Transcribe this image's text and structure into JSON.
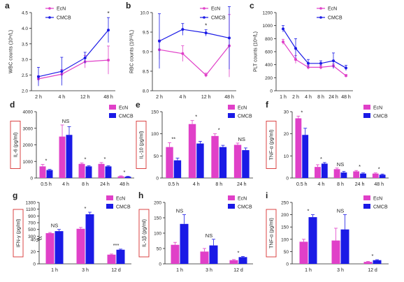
{
  "colors": {
    "ecn": "#e040c8",
    "cmcb": "#1a1ae6",
    "box": "#d83030",
    "axis": "#222222"
  },
  "chart_data": [
    {
      "id": "a",
      "panel_label": "a",
      "type": "line",
      "ylabel": "WBC counts (10⁹/L)",
      "categories": [
        "2 h",
        "4 h",
        "12 h",
        "48 h"
      ],
      "ylim": [
        2.0,
        4.5
      ],
      "yticks": [
        2.0,
        2.5,
        3.0,
        3.5,
        4.0,
        4.5
      ],
      "ytick_labels": [
        "2.0",
        "2.5",
        "3.0",
        "3.5",
        "4.0",
        "4.5"
      ],
      "legend": [
        "EcN",
        "CMCB"
      ],
      "legend_pos": "top-left",
      "series": [
        {
          "name": "EcN",
          "values": [
            2.38,
            2.53,
            2.93,
            2.98
          ],
          "err": [
            0.1,
            0.15,
            0.2,
            0.45
          ]
        },
        {
          "name": "CMCB",
          "values": [
            2.45,
            2.62,
            3.05,
            3.94
          ],
          "err": [
            0.3,
            0.45,
            0.18,
            0.4
          ]
        }
      ],
      "annotations": [
        {
          "index": 3,
          "text": "*"
        }
      ]
    },
    {
      "id": "b",
      "panel_label": "b",
      "type": "line",
      "ylabel": "RBC counts (10¹²/L)",
      "categories": [
        "2 h",
        "4 h",
        "12 h",
        "48 h"
      ],
      "ylim": [
        8.0,
        10.0
      ],
      "yticks": [
        8.0,
        8.5,
        9.0,
        9.5,
        10.0
      ],
      "ytick_labels": [
        "8.0",
        "8.5",
        "9.0",
        "9.5",
        "10.0"
      ],
      "legend": [
        "EcN",
        "CMCB"
      ],
      "legend_pos": "top-right",
      "series": [
        {
          "name": "EcN",
          "values": [
            9.05,
            8.95,
            8.4,
            9.15
          ],
          "err": [
            0.25,
            0.2,
            0.05,
            0.8
          ]
        },
        {
          "name": "CMCB",
          "values": [
            9.27,
            9.57,
            9.48,
            9.35
          ],
          "err": [
            0.7,
            0.15,
            0.08,
            0.8
          ]
        }
      ],
      "annotations": [
        {
          "index": 2,
          "text": "*"
        }
      ]
    },
    {
      "id": "c",
      "panel_label": "c",
      "type": "line",
      "ylabel": "PLT counts (10⁹/L)",
      "categories": [
        "1 h",
        "2 h",
        "4 h",
        "8 h",
        "24 h",
        "48 h"
      ],
      "ylim": [
        0,
        1200
      ],
      "yticks": [
        0,
        200,
        400,
        600,
        800,
        1000,
        1200
      ],
      "ytick_labels": [
        "0",
        "200",
        "400",
        "600",
        "800",
        "1000",
        "1200"
      ],
      "legend": [
        "EcN",
        "CMCB"
      ],
      "legend_pos": "top-right",
      "series": [
        {
          "name": "EcN",
          "values": [
            750,
            480,
            360,
            360,
            380,
            230
          ],
          "err": [
            40,
            60,
            30,
            30,
            30,
            20
          ]
        },
        {
          "name": "CMCB",
          "values": [
            950,
            650,
            420,
            420,
            460,
            350
          ],
          "err": [
            50,
            150,
            60,
            40,
            120,
            40
          ]
        }
      ],
      "annotations": []
    },
    {
      "id": "d",
      "panel_label": "d",
      "type": "bar",
      "ylabel": "IL-6 (pg/ml)",
      "categories": [
        "0.5 h",
        "4 h",
        "8 h",
        "24 h",
        "48 h"
      ],
      "ylim": [
        0,
        4000
      ],
      "yticks": [
        0,
        1000,
        2000,
        3000,
        4000
      ],
      "ytick_labels": [
        "0",
        "1000",
        "2000",
        "3000",
        "4000"
      ],
      "legend": [
        "EcN",
        "CMCB"
      ],
      "legend_pos": "top-right",
      "series": [
        {
          "name": "EcN",
          "values": [
            700,
            2500,
            850,
            850,
            100
          ],
          "err": [
            120,
            700,
            60,
            80,
            30
          ]
        },
        {
          "name": "CMCB",
          "values": [
            480,
            2600,
            700,
            700,
            80
          ],
          "err": [
            40,
            500,
            40,
            40,
            20
          ]
        }
      ],
      "annotations": [
        {
          "index": 0,
          "text": "*"
        },
        {
          "index": 1,
          "text": "NS"
        },
        {
          "index": 2,
          "text": "*"
        },
        {
          "index": 3,
          "text": "*"
        },
        {
          "index": 4,
          "text": "*"
        }
      ]
    },
    {
      "id": "e",
      "panel_label": "e",
      "type": "bar",
      "ylabel": "IL-10 (pg/ml)",
      "categories": [
        "0.5 h",
        "4 h",
        "8 h",
        "24 h"
      ],
      "ylim": [
        0,
        150
      ],
      "yticks": [
        0,
        50,
        100,
        150
      ],
      "ytick_labels": [
        "0",
        "50",
        "100",
        "150"
      ],
      "legend": [
        "EcN",
        "CMCB"
      ],
      "legend_pos": "top-right",
      "series": [
        {
          "name": "EcN",
          "values": [
            70,
            122,
            95,
            75
          ],
          "err": [
            10,
            8,
            5,
            4
          ]
        },
        {
          "name": "CMCB",
          "values": [
            40,
            78,
            70,
            63
          ],
          "err": [
            5,
            5,
            4,
            5
          ]
        }
      ],
      "annotations": [
        {
          "index": 0,
          "text": "**"
        },
        {
          "index": 1,
          "text": "*"
        },
        {
          "index": 2,
          "text": "*"
        },
        {
          "index": 3,
          "text": "NS"
        }
      ]
    },
    {
      "id": "f",
      "panel_label": "f",
      "type": "bar",
      "ylabel": "TNF-α (pg/ml)",
      "categories": [
        "0.5 h",
        "4 h",
        "8 h",
        "24 h",
        "48 h"
      ],
      "ylim": [
        0,
        30
      ],
      "yticks": [
        0,
        10,
        20,
        30
      ],
      "ytick_labels": [
        "0",
        "10",
        "20",
        "30"
      ],
      "legend": [
        "EcN",
        "CMCB"
      ],
      "legend_pos": "top-right",
      "series": [
        {
          "name": "EcN",
          "values": [
            27,
            5,
            4,
            3,
            2
          ],
          "err": [
            1,
            1,
            0.5,
            0.4,
            0.3
          ]
        },
        {
          "name": "CMCB",
          "values": [
            19.5,
            6.5,
            2.5,
            2,
            1.5
          ],
          "err": [
            3,
            0.5,
            0.5,
            0.3,
            0.3
          ]
        }
      ],
      "annotations": [
        {
          "index": 0,
          "text": "*"
        },
        {
          "index": 1,
          "text": "*"
        },
        {
          "index": 2,
          "text": "NS"
        },
        {
          "index": 3,
          "text": "*"
        },
        {
          "index": 4,
          "text": "*"
        }
      ]
    },
    {
      "id": "g",
      "panel_label": "g",
      "type": "bar",
      "ylabel": "IFN-γ (pg/ml)",
      "categories": [
        "1 h",
        "3 h",
        "12 d"
      ],
      "ylim": [
        0,
        1300
      ],
      "broken_axis": true,
      "yticks": [
        0,
        20,
        40,
        300,
        500,
        700,
        900,
        1100,
        1300
      ],
      "ytick_labels": [
        "0",
        "20",
        "40",
        "300",
        "500",
        "700",
        "900",
        "1100",
        "1300"
      ],
      "legend": [
        "EcN",
        "CMCB"
      ],
      "legend_pos": "top-right",
      "series": [
        {
          "name": "EcN",
          "values": [
            390,
            520,
            15
          ],
          "err": [
            20,
            40,
            1
          ]
        },
        {
          "name": "CMCB",
          "values": [
            450,
            950,
            23
          ],
          "err": [
            50,
            60,
            1
          ]
        }
      ],
      "annotations": [
        {
          "index": 0,
          "text": "NS"
        },
        {
          "index": 1,
          "text": "*"
        },
        {
          "index": 2,
          "text": "***"
        }
      ]
    },
    {
      "id": "h",
      "panel_label": "h",
      "type": "bar",
      "ylabel": "IL-1β (pg/ml)",
      "categories": [
        "1 h",
        "3 h",
        "12 d"
      ],
      "ylim": [
        0,
        200
      ],
      "yticks": [
        0,
        50,
        100,
        150,
        200
      ],
      "ytick_labels": [
        "0",
        "50",
        "100",
        "150",
        "200"
      ],
      "legend": [
        "EcN",
        "CMCB"
      ],
      "legend_pos": "top-right",
      "series": [
        {
          "name": "EcN",
          "values": [
            62,
            40,
            12
          ],
          "err": [
            8,
            10,
            2
          ]
        },
        {
          "name": "CMCB",
          "values": [
            130,
            60,
            22
          ],
          "err": [
            30,
            20,
            2
          ]
        }
      ],
      "annotations": [
        {
          "index": 0,
          "text": "NS"
        },
        {
          "index": 1,
          "text": "NS"
        },
        {
          "index": 2,
          "text": "*"
        }
      ]
    },
    {
      "id": "i",
      "panel_label": "i",
      "type": "bar",
      "ylabel": "TNF-α (pg/ml)",
      "categories": [
        "1 h",
        "3 h",
        "12 d"
      ],
      "ylim": [
        0,
        250
      ],
      "yticks": [
        0,
        50,
        100,
        150,
        200,
        250
      ],
      "ytick_labels": [
        "0",
        "50",
        "100",
        "150",
        "200",
        "250"
      ],
      "legend": [
        "EcN",
        "CMCB"
      ],
      "legend_pos": "top-right",
      "series": [
        {
          "name": "EcN",
          "values": [
            90,
            95,
            8
          ],
          "err": [
            10,
            50,
            2
          ]
        },
        {
          "name": "CMCB",
          "values": [
            190,
            140,
            15
          ],
          "err": [
            10,
            60,
            2
          ]
        }
      ],
      "annotations": [
        {
          "index": 0,
          "text": "*"
        },
        {
          "index": 1,
          "text": "NS"
        },
        {
          "index": 2,
          "text": "*"
        }
      ]
    }
  ]
}
